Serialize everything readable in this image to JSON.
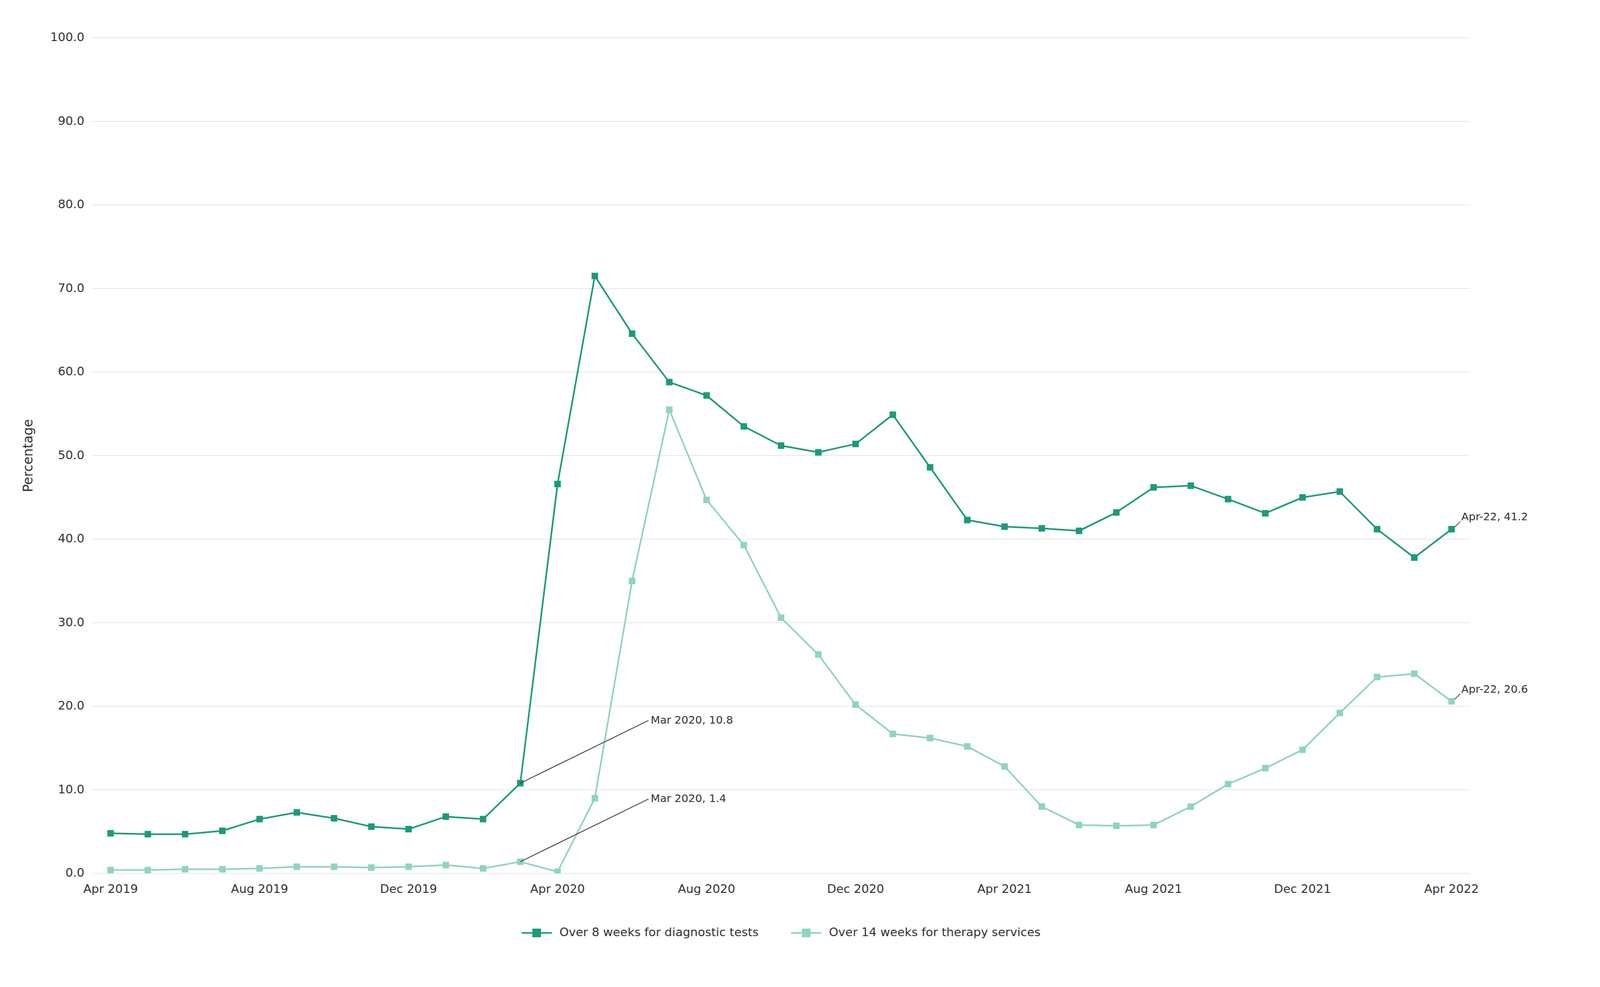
{
  "chart_data": {
    "type": "line",
    "y_label": "Percentage",
    "categories": [
      "Apr 2019",
      null,
      null,
      null,
      "Aug 2019",
      null,
      null,
      null,
      "Dec 2019",
      null,
      null,
      null,
      "Apr 2020",
      null,
      null,
      null,
      "Aug 2020",
      null,
      null,
      null,
      "Dec 2020",
      null,
      null,
      null,
      "Apr 2021",
      null,
      null,
      null,
      "Aug 2021",
      null,
      null,
      null,
      "Dec 2021",
      null,
      null,
      null,
      "Apr 2022"
    ],
    "series": [
      {
        "name": "Over 8 weeks for diagnostic tests",
        "color": "#1a9b7b",
        "marker": "square",
        "values": [
          4.8,
          4.7,
          4.7,
          5.1,
          6.5,
          7.3,
          6.6,
          5.6,
          5.3,
          6.8,
          6.5,
          10.8,
          46.6,
          71.5,
          64.6,
          58.8,
          57.2,
          53.5,
          51.2,
          50.4,
          51.4,
          54.9,
          48.6,
          42.3,
          41.5,
          41.3,
          41.0,
          43.2,
          46.2,
          46.4,
          44.8,
          43.1,
          45.0,
          45.7,
          41.2,
          37.8,
          41.2
        ]
      },
      {
        "name": "Over 14 weeks for therapy services",
        "color": "#8fd5bb",
        "marker": "square",
        "values": [
          0.4,
          0.4,
          0.5,
          0.5,
          0.6,
          0.8,
          0.8,
          0.7,
          0.8,
          1.0,
          0.6,
          1.4,
          0.2,
          9.0,
          35.0,
          55.5,
          44.7,
          39.3,
          30.6,
          26.2,
          20.2,
          16.7,
          16.2,
          15.2,
          12.8,
          8.0,
          5.8,
          5.7,
          5.8,
          8.0,
          10.7,
          12.6,
          14.8,
          19.2,
          23.5,
          23.9,
          20.6
        ]
      }
    ],
    "ylim": [
      0,
      100
    ],
    "yticks": [
      {
        "value": 0,
        "label": "0.0"
      },
      {
        "value": 10,
        "label": "10.0"
      },
      {
        "value": 20,
        "label": "20.0"
      },
      {
        "value": 30,
        "label": "30.0"
      },
      {
        "value": 40,
        "label": "40.0"
      },
      {
        "value": 50,
        "label": "50.0"
      },
      {
        "value": 60,
        "label": "60.0"
      },
      {
        "value": 70,
        "label": "70.0"
      },
      {
        "value": 80,
        "label": "80.0"
      },
      {
        "value": 90,
        "label": "90.0"
      },
      {
        "value": 100,
        "label": "100.0"
      }
    ],
    "grid": true,
    "legend": "bottom",
    "annotations": [
      {
        "text": "Mar 2020, 10.8",
        "index": 11,
        "y": 10.8
      },
      {
        "text": "Mar 2020, 1.4",
        "index": 11,
        "y": 1.4
      },
      {
        "text": "Apr-22, 41.2",
        "index": 36,
        "y": 41.2
      },
      {
        "text": "Apr-22, 20.6",
        "index": 36,
        "y": 20.6
      }
    ]
  }
}
